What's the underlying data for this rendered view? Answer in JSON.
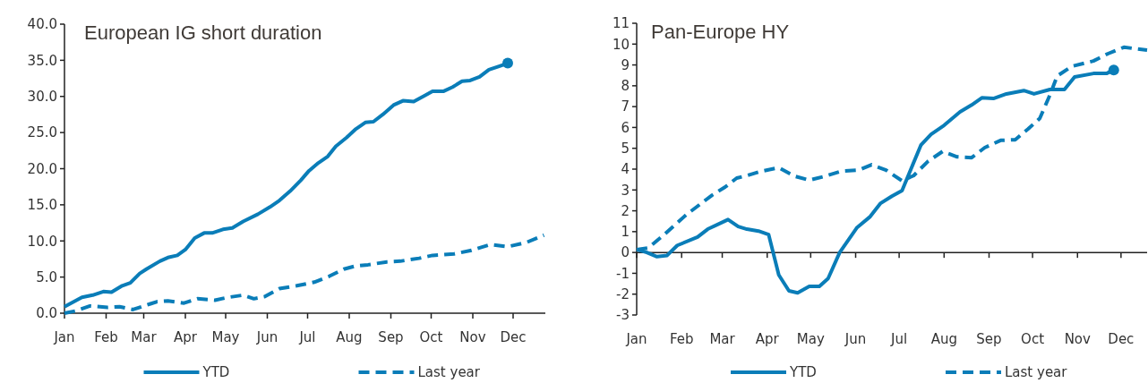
{
  "chart_data": [
    {
      "type": "line",
      "title": "European IG short duration",
      "legend": "bottom",
      "grid": false,
      "xlim": [
        "--01-01",
        "--12-25"
      ],
      "xticks": [
        {
          "value": "--01-01",
          "label": "Jan"
        },
        {
          "value": "--02-01",
          "label": "Feb"
        },
        {
          "value": "--03-01",
          "label": "Mar"
        },
        {
          "value": "--04-01",
          "label": "Apr"
        },
        {
          "value": "--05-01",
          "label": "May"
        },
        {
          "value": "--06-01",
          "label": "Jun"
        },
        {
          "value": "--07-01",
          "label": "Jul"
        },
        {
          "value": "--08-01",
          "label": "Aug"
        },
        {
          "value": "--09-01",
          "label": "Sep"
        },
        {
          "value": "--10-01",
          "label": "Oct"
        },
        {
          "value": "--11-01",
          "label": "Nov"
        },
        {
          "value": "--12-01",
          "label": "Dec"
        }
      ],
      "ylim": [
        0,
        40
      ],
      "yticks": [
        {
          "value": 0,
          "label": "0.0"
        },
        {
          "value": 5,
          "label": "5.0"
        },
        {
          "value": 10,
          "label": "10.0"
        },
        {
          "value": 15,
          "label": "15.0"
        },
        {
          "value": 20,
          "label": "20.0"
        },
        {
          "value": 25,
          "label": "25.0"
        },
        {
          "value": 30,
          "label": "30.0"
        },
        {
          "value": 35,
          "label": "35.0"
        },
        {
          "value": 40,
          "label": "40.0"
        }
      ],
      "series": [
        {
          "name": "YTD",
          "color": "#0a7db8",
          "line_style": "solid",
          "x": [
            "--01-01",
            "--01-14",
            "--01-22",
            "--01-30",
            "--02-05",
            "--02-13",
            "--02-19",
            "--02-26",
            "--03-03",
            "--03-13",
            "--03-19",
            "--03-26",
            "--04-01",
            "--04-08",
            "--04-15",
            "--04-21",
            "--04-29",
            "--05-06",
            "--05-14",
            "--05-25",
            "--06-03",
            "--06-10",
            "--06-18",
            "--06-26",
            "--07-02",
            "--07-09",
            "--07-16",
            "--07-22",
            "--07-30",
            "--08-06",
            "--08-13",
            "--08-19",
            "--08-26",
            "--09-03",
            "--09-10",
            "--09-18",
            "--09-26",
            "--10-02",
            "--10-10",
            "--10-17",
            "--10-24",
            "--10-30",
            "--11-06",
            "--11-13",
            "--11-21",
            "--11-27"
          ],
          "values": [
            0.9,
            2.2,
            2.5,
            3.0,
            2.9,
            3.8,
            4.2,
            5.5,
            6.1,
            7.2,
            7.7,
            8.0,
            8.8,
            10.4,
            11.1,
            11.1,
            11.6,
            11.8,
            12.7,
            13.7,
            14.7,
            15.6,
            16.9,
            18.4,
            19.7,
            20.8,
            21.7,
            23.1,
            24.3,
            25.5,
            26.4,
            26.5,
            27.5,
            28.8,
            29.4,
            29.3,
            30.1,
            30.7,
            30.7,
            31.3,
            32.1,
            32.2,
            32.7,
            33.7,
            34.2,
            34.6
          ]
        },
        {
          "type": "scatter",
          "color": "#0a7db8",
          "marker": "circle",
          "x": [
            "--11-27"
          ],
          "values": [
            34.6
          ]
        },
        {
          "name": "Last year",
          "color": "#0a7db8",
          "line_style": "dashed",
          "x": [
            "--01-01",
            "--01-09",
            "--01-20",
            "--02-02",
            "--02-11",
            "--02-21",
            "--03-06",
            "--03-11",
            "--03-19",
            "--03-31",
            "--04-10",
            "--04-23",
            "--05-03",
            "--05-14",
            "--05-22",
            "--05-30",
            "--06-10",
            "--06-23",
            "--07-06",
            "--07-17",
            "--07-28",
            "--08-05",
            "--08-15",
            "--08-29",
            "--09-08",
            "--09-22",
            "--10-02",
            "--10-18",
            "--10-31",
            "--11-14",
            "--11-27",
            "--12-11",
            "--12-24"
          ],
          "values": [
            0,
            0.3,
            1.0,
            0.8,
            0.9,
            0.5,
            1.3,
            1.6,
            1.7,
            1.4,
            2.0,
            1.8,
            2.2,
            2.5,
            2.0,
            2.3,
            3.4,
            3.8,
            4.3,
            5.1,
            6.1,
            6.5,
            6.7,
            7.1,
            7.2,
            7.6,
            8.0,
            8.2,
            8.7,
            9.5,
            9.2,
            9.8,
            10.8
          ]
        }
      ]
    },
    {
      "type": "line",
      "title": "Pan-Europe HY",
      "legend": "bottom",
      "grid": false,
      "ref_lines": [
        {
          "axis": "y",
          "value": 0,
          "color": "#222222"
        }
      ],
      "xlim": [
        "--01-01",
        "--12-19"
      ],
      "xticks": [
        {
          "value": "--01-01",
          "label": "Jan"
        },
        {
          "value": "--02-01",
          "label": "Feb"
        },
        {
          "value": "--03-01",
          "label": "Mar"
        },
        {
          "value": "--04-01",
          "label": "Apr"
        },
        {
          "value": "--05-01",
          "label": "May"
        },
        {
          "value": "--06-01",
          "label": "Jun"
        },
        {
          "value": "--07-01",
          "label": "Jul"
        },
        {
          "value": "--08-01",
          "label": "Aug"
        },
        {
          "value": "--09-01",
          "label": "Sep"
        },
        {
          "value": "--10-01",
          "label": "Oct"
        },
        {
          "value": "--11-01",
          "label": "Nov"
        },
        {
          "value": "--12-01",
          "label": "Dec"
        }
      ],
      "ylim": [
        -3,
        11
      ],
      "yticks": [
        -3,
        -2,
        -1,
        0,
        1,
        2,
        3,
        4,
        5,
        6,
        7,
        8,
        9,
        10,
        11
      ],
      "series": [
        {
          "name": "YTD",
          "color": "#0a7db8",
          "line_style": "solid",
          "x": [
            "--01-01",
            "--01-08",
            "--01-15",
            "--01-22",
            "--01-29",
            "--02-12",
            "--02-19",
            "--03-05",
            "--03-12",
            "--03-18",
            "--03-26",
            "--04-02",
            "--04-09",
            "--04-16",
            "--04-22",
            "--04-30",
            "--05-07",
            "--05-13",
            "--05-21",
            "--06-02",
            "--06-11",
            "--06-18",
            "--06-26",
            "--07-03",
            "--07-16",
            "--07-23",
            "--08-01",
            "--08-12",
            "--08-20",
            "--08-27",
            "--09-04",
            "--09-13",
            "--09-25",
            "--10-02",
            "--10-13",
            "--10-23",
            "--10-30",
            "--11-12",
            "--11-21",
            "--11-26"
          ],
          "values": [
            0.14,
            0,
            -0.2,
            -0.14,
            0.34,
            0.74,
            1.12,
            1.58,
            1.25,
            1.12,
            1.03,
            0.86,
            -1.08,
            -1.84,
            -1.94,
            -1.63,
            -1.63,
            -1.25,
            0,
            1.2,
            1.72,
            2.35,
            2.7,
            2.97,
            5.15,
            5.67,
            6.1,
            6.75,
            7.08,
            7.42,
            7.39,
            7.61,
            7.77,
            7.61,
            7.82,
            7.82,
            8.42,
            8.59,
            8.59,
            8.76
          ]
        },
        {
          "type": "scatter",
          "color": "#0a7db8",
          "marker": "circle",
          "x": [
            "--11-26"
          ],
          "values": [
            8.76
          ]
        },
        {
          "name": "Last year",
          "color": "#0a7db8",
          "line_style": "dashed",
          "x": [
            "--01-01",
            "--01-09",
            "--01-20",
            "--02-04",
            "--02-22",
            "--03-03",
            "--03-11",
            "--03-18",
            "--03-28",
            "--04-09",
            "--04-20",
            "--04-30",
            "--05-10",
            "--05-22",
            "--06-03",
            "--06-12",
            "--06-22",
            "--07-03",
            "--07-11",
            "--07-21",
            "--07-31",
            "--08-10",
            "--08-20",
            "--08-29",
            "--09-09",
            "--09-19",
            "--09-28",
            "--10-06",
            "--10-13",
            "--10-18",
            "--10-28",
            "--11-12",
            "--11-22",
            "--12-03",
            "--12-19"
          ],
          "values": [
            0.14,
            0.22,
            0.86,
            1.8,
            2.75,
            3.14,
            3.57,
            3.69,
            3.9,
            4.07,
            3.66,
            3.47,
            3.64,
            3.9,
            3.95,
            4.21,
            3.95,
            3.44,
            3.69,
            4.38,
            4.85,
            4.59,
            4.55,
            5.03,
            5.38,
            5.41,
            5.93,
            6.44,
            7.56,
            8.47,
            8.93,
            9.19,
            9.54,
            9.85,
            9.71
          ]
        }
      ]
    }
  ]
}
